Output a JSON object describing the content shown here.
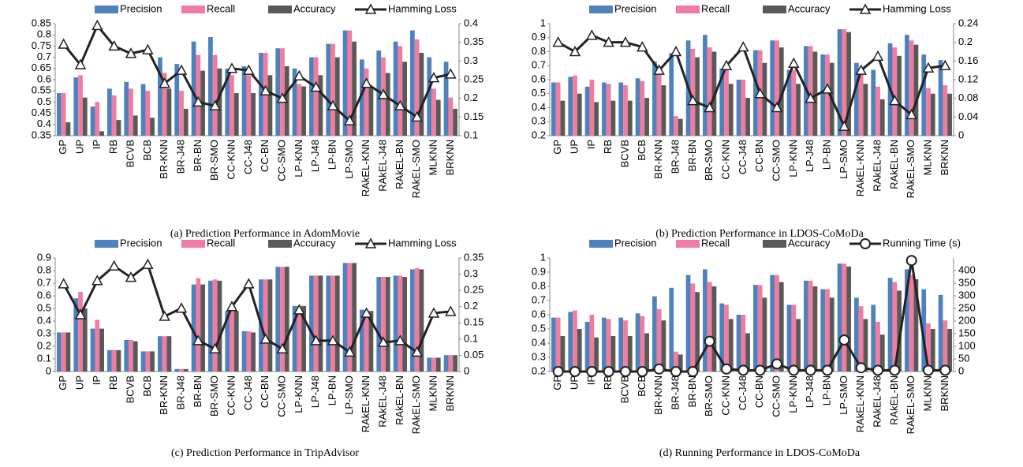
{
  "chart_data": [
    {
      "type": "bar",
      "caption": "(a) Prediction Performance in AdomMovie",
      "categories": [
        "GP",
        "UP",
        "IP",
        "RB",
        "BCVB",
        "BCB",
        "BR-KNN",
        "BR-J48",
        "BR-BN",
        "BR-SMO",
        "CC-KNN",
        "CC-J48",
        "CC-BN",
        "CC-SMO",
        "LP-KNN",
        "LP-J48",
        "LP-BN",
        "LP-SMO",
        "RAkEL-KNN",
        "RAkEL-J48",
        "RAkEL-BN",
        "RAkEL-SMO",
        "MLKNN",
        "BRKNN"
      ],
      "series": [
        {
          "name": "Precision",
          "color": "#4f81bd",
          "values": [
            0.54,
            0.61,
            0.48,
            0.56,
            0.59,
            0.58,
            0.7,
            0.67,
            0.77,
            0.79,
            0.65,
            0.66,
            0.72,
            0.74,
            0.65,
            0.7,
            0.76,
            0.82,
            0.69,
            0.73,
            0.77,
            0.82,
            0.7,
            0.68
          ]
        },
        {
          "name": "Recall",
          "color": "#f07ca0",
          "values": [
            0.54,
            0.62,
            0.5,
            0.53,
            0.56,
            0.55,
            0.63,
            0.55,
            0.71,
            0.71,
            0.62,
            0.62,
            0.72,
            0.74,
            0.58,
            0.7,
            0.76,
            0.82,
            0.65,
            0.7,
            0.75,
            0.78,
            0.56,
            0.52
          ]
        },
        {
          "name": "Accuracy",
          "color": "#595959",
          "values": [
            0.41,
            0.52,
            0.37,
            0.42,
            0.44,
            0.43,
            0.56,
            0.47,
            0.64,
            0.65,
            0.54,
            0.54,
            0.62,
            0.66,
            0.57,
            0.62,
            0.7,
            0.77,
            0.57,
            0.63,
            0.68,
            0.72,
            0.51,
            0.47
          ]
        },
        {
          "name": "Hamming Loss",
          "color": "#222222",
          "type": "line",
          "marker": "triangle",
          "axis": "y2",
          "values": [
            0.345,
            0.29,
            0.395,
            0.34,
            0.32,
            0.33,
            0.24,
            0.275,
            0.19,
            0.18,
            0.28,
            0.275,
            0.22,
            0.2,
            0.26,
            0.23,
            0.18,
            0.14,
            0.24,
            0.21,
            0.18,
            0.15,
            0.255,
            0.265
          ]
        }
      ],
      "ylim": [
        0.35,
        0.85
      ],
      "yticks": [
        0.35,
        0.4,
        0.45,
        0.5,
        0.55,
        0.6,
        0.65,
        0.7,
        0.75,
        0.8,
        0.85
      ],
      "y2lim": [
        0.1,
        0.4
      ],
      "y2ticks": [
        0.1,
        0.15,
        0.2,
        0.25,
        0.3,
        0.35,
        0.4
      ]
    },
    {
      "type": "bar",
      "caption": "(b) Prediction Performance in LDOS-CoMoDa",
      "categories": [
        "GP",
        "UP",
        "IP",
        "RB",
        "BCVB",
        "BCB",
        "BR-KNN",
        "BR-J48",
        "BR-BN",
        "BR-SMO",
        "CC-KNN",
        "CC-J48",
        "CC-BN",
        "CC-SMO",
        "LP-KNN",
        "LP-J48",
        "LP-BN",
        "LP-SMO",
        "RAkEL-KNN",
        "RAkEL-J48",
        "RAkEL-BN",
        "RAkEL-SMO",
        "MLKNN",
        "BRKNN"
      ],
      "series": [
        {
          "name": "Precision",
          "color": "#4f81bd",
          "values": [
            0.58,
            0.62,
            0.55,
            0.58,
            0.58,
            0.61,
            0.73,
            0.79,
            0.88,
            0.92,
            0.68,
            0.6,
            0.81,
            0.88,
            0.67,
            0.84,
            0.78,
            0.96,
            0.72,
            0.67,
            0.86,
            0.92,
            0.78,
            0.74
          ]
        },
        {
          "name": "Recall",
          "color": "#f07ca0",
          "values": [
            0.58,
            0.63,
            0.6,
            0.57,
            0.56,
            0.59,
            0.64,
            0.34,
            0.82,
            0.83,
            0.67,
            0.6,
            0.81,
            0.88,
            0.67,
            0.84,
            0.78,
            0.96,
            0.66,
            0.55,
            0.83,
            0.88,
            0.54,
            0.56
          ]
        },
        {
          "name": "Accuracy",
          "color": "#595959",
          "values": [
            0.45,
            0.5,
            0.44,
            0.45,
            0.45,
            0.47,
            0.56,
            0.32,
            0.76,
            0.8,
            0.57,
            0.47,
            0.72,
            0.83,
            0.57,
            0.8,
            0.72,
            0.94,
            0.57,
            0.46,
            0.77,
            0.85,
            0.5,
            0.5
          ]
        },
        {
          "name": "Hamming Loss",
          "color": "#222222",
          "type": "line",
          "marker": "triangle",
          "axis": "y2",
          "values": [
            0.2,
            0.18,
            0.215,
            0.2,
            0.2,
            0.19,
            0.14,
            0.18,
            0.075,
            0.06,
            0.15,
            0.19,
            0.09,
            0.06,
            0.155,
            0.08,
            0.1,
            0.02,
            0.14,
            0.17,
            0.075,
            0.045,
            0.145,
            0.15
          ]
        }
      ],
      "ylim": [
        0.2,
        1
      ],
      "yticks": [
        0.2,
        0.3,
        0.4,
        0.5,
        0.6,
        0.7,
        0.8,
        0.9,
        1
      ],
      "y2lim": [
        0,
        0.24
      ],
      "y2ticks": [
        0,
        0.04,
        0.08,
        0.12,
        0.16,
        0.2,
        0.24
      ]
    },
    {
      "type": "bar",
      "caption": "(c) Prediction Performance in TripAdvisor",
      "categories": [
        "GP",
        "UP",
        "IP",
        "RB",
        "BCVB",
        "BCB",
        "BR-KNN",
        "BR-J48",
        "BR-BN",
        "BR-SMO",
        "CC-KNN",
        "CC-J48",
        "CC-BN",
        "CC-SMO",
        "LP-KNN",
        "LP-J48",
        "LP-BN",
        "LP-SMO",
        "RAkEL-KNN",
        "RAkEL-J48",
        "RAkEL-BN",
        "RAkEL-SMO",
        "MLKNN",
        "BRKNN"
      ],
      "series": [
        {
          "name": "Precision",
          "color": "#4f81bd",
          "values": [
            0.31,
            0.58,
            0.34,
            0.17,
            0.25,
            0.16,
            0.28,
            0.02,
            0.69,
            0.72,
            0.48,
            0.32,
            0.73,
            0.83,
            0.52,
            0.76,
            0.76,
            0.86,
            0.49,
            0.75,
            0.76,
            0.81,
            0.11,
            0.13
          ]
        },
        {
          "name": "Recall",
          "color": "#f07ca0",
          "values": [
            0.31,
            0.63,
            0.41,
            0.17,
            0.25,
            0.16,
            0.28,
            0.02,
            0.74,
            0.73,
            0.5,
            0.32,
            0.73,
            0.83,
            0.52,
            0.76,
            0.76,
            0.86,
            0.49,
            0.75,
            0.76,
            0.82,
            0.11,
            0.13
          ]
        },
        {
          "name": "Accuracy",
          "color": "#595959",
          "values": [
            0.31,
            0.5,
            0.34,
            0.17,
            0.24,
            0.16,
            0.28,
            0.02,
            0.69,
            0.72,
            0.48,
            0.31,
            0.73,
            0.83,
            0.52,
            0.76,
            0.76,
            0.86,
            0.48,
            0.75,
            0.75,
            0.81,
            0.11,
            0.13
          ]
        },
        {
          "name": "Hamming Loss",
          "color": "#222222",
          "type": "line",
          "marker": "triangle",
          "axis": "y2",
          "values": [
            0.27,
            0.175,
            0.28,
            0.325,
            0.29,
            0.33,
            0.17,
            0.195,
            0.095,
            0.07,
            0.2,
            0.27,
            0.1,
            0.07,
            0.19,
            0.095,
            0.095,
            0.06,
            0.18,
            0.09,
            0.095,
            0.06,
            0.18,
            0.185
          ]
        }
      ],
      "ylim": [
        0,
        0.9
      ],
      "yticks": [
        0,
        0.1,
        0.2,
        0.3,
        0.4,
        0.5,
        0.6,
        0.7,
        0.8,
        0.9
      ],
      "y2lim": [
        0,
        0.35
      ],
      "y2ticks": [
        0,
        0.05,
        0.1,
        0.15,
        0.2,
        0.25,
        0.3,
        0.35
      ]
    },
    {
      "type": "bar",
      "caption": "(d) Running Performance in LDOS-CoMoDa",
      "categories": [
        "GP",
        "UP",
        "IP",
        "RB",
        "BCVB",
        "BCB",
        "BR-KNN",
        "BR-J48",
        "BR-BN",
        "BR-SMO",
        "CC-KNN",
        "CC-J48",
        "CC-BN",
        "CC-SMO",
        "LP-KNN",
        "LP-J48",
        "LP-BN",
        "LP-SMO",
        "RAkEL-KNN",
        "RAkEL-J48",
        "RAkEL-BN",
        "RAkEL-SMO",
        "MLKNN",
        "BRKNN"
      ],
      "series": [
        {
          "name": "Precision",
          "color": "#4f81bd",
          "values": [
            0.58,
            0.62,
            0.55,
            0.58,
            0.58,
            0.61,
            0.73,
            0.79,
            0.88,
            0.92,
            0.68,
            0.6,
            0.81,
            0.88,
            0.67,
            0.84,
            0.78,
            0.96,
            0.72,
            0.67,
            0.86,
            0.92,
            0.78,
            0.74
          ]
        },
        {
          "name": "Recall",
          "color": "#f07ca0",
          "values": [
            0.58,
            0.63,
            0.6,
            0.57,
            0.56,
            0.59,
            0.64,
            0.34,
            0.82,
            0.83,
            0.67,
            0.6,
            0.81,
            0.88,
            0.67,
            0.84,
            0.78,
            0.96,
            0.66,
            0.55,
            0.83,
            0.88,
            0.54,
            0.56
          ]
        },
        {
          "name": "Accuracy",
          "color": "#595959",
          "values": [
            0.45,
            0.5,
            0.44,
            0.45,
            0.45,
            0.47,
            0.56,
            0.32,
            0.76,
            0.8,
            0.57,
            0.47,
            0.72,
            0.83,
            0.57,
            0.8,
            0.72,
            0.94,
            0.57,
            0.46,
            0.77,
            0.85,
            0.5,
            0.5
          ]
        },
        {
          "name": "Running Time (s)",
          "color": "#222222",
          "type": "line",
          "marker": "circle",
          "axis": "y2",
          "values": [
            0,
            0,
            0,
            0,
            0,
            0,
            10,
            0,
            0,
            120,
            10,
            5,
            5,
            30,
            5,
            5,
            5,
            125,
            15,
            5,
            5,
            440,
            5,
            5
          ]
        }
      ],
      "ylim": [
        0.2,
        1
      ],
      "yticks": [
        0.2,
        0.3,
        0.4,
        0.5,
        0.6,
        0.7,
        0.8,
        0.9,
        1
      ],
      "y2lim": [
        0,
        450
      ],
      "y2ticks": [
        0,
        50,
        100,
        150,
        200,
        250,
        300,
        350,
        400
      ]
    }
  ]
}
